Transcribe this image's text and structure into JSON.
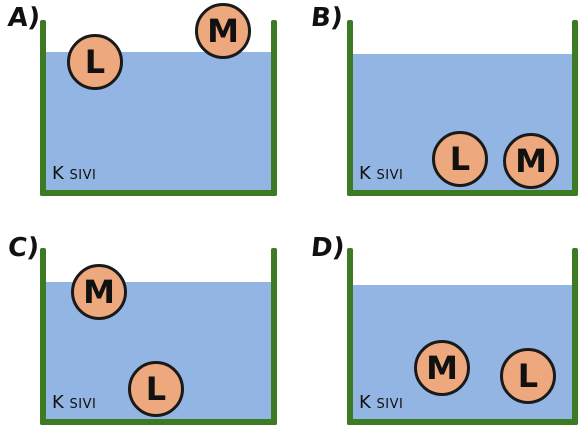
{
  "panels": [
    {
      "letter": "A)",
      "liquid_label_big": "K",
      "liquid_label_small": "SIVI",
      "ball_l": "L",
      "ball_m": "M"
    },
    {
      "letter": "B)",
      "liquid_label_big": "K",
      "liquid_label_small": "SIVI",
      "ball_l": "L",
      "ball_m": "M"
    },
    {
      "letter": "C)",
      "liquid_label_big": "K",
      "liquid_label_small": "SIVI",
      "ball_l": "L",
      "ball_m": "M"
    },
    {
      "letter": "D)",
      "liquid_label_big": "K",
      "liquid_label_small": "SIVI",
      "ball_l": "L",
      "ball_m": "M"
    }
  ],
  "colors": {
    "water": "#93b5e3",
    "container": "#3d7a24",
    "ball_fill": "#eda87e"
  }
}
